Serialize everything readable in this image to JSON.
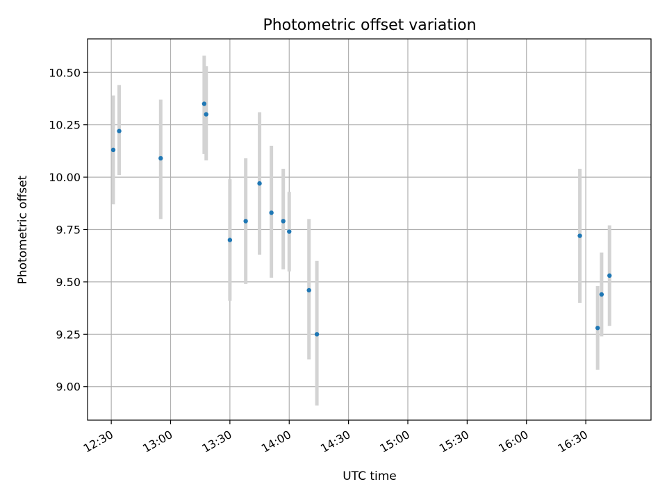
{
  "chart_data": {
    "type": "scatter",
    "title": "Photometric offset variation",
    "xlabel": "UTC time",
    "ylabel": "Photometric offset",
    "x_ticks": [
      "12:30",
      "13:00",
      "13:30",
      "14:00",
      "14:30",
      "15:00",
      "15:30",
      "16:00",
      "16:30"
    ],
    "y_ticks": [
      "9.00",
      "9.25",
      "9.50",
      "9.75",
      "10.00",
      "10.25",
      "10.50"
    ],
    "xlim": [
      "12:18",
      "17:03"
    ],
    "ylim": [
      8.84,
      10.66
    ],
    "grid": true,
    "colors": {
      "point": "#1f77b4",
      "errorbar": "#d3d3d3",
      "grid": "#b0b0b0"
    },
    "points": [
      {
        "x": "12:31",
        "y": 10.13,
        "err_low": 9.87,
        "err_high": 10.39
      },
      {
        "x": "12:34",
        "y": 10.22,
        "err_low": 10.01,
        "err_high": 10.44
      },
      {
        "x": "12:55",
        "y": 10.09,
        "err_low": 9.8,
        "err_high": 10.37
      },
      {
        "x": "13:17",
        "y": 10.35,
        "err_low": 10.11,
        "err_high": 10.58
      },
      {
        "x": "13:18",
        "y": 10.3,
        "err_low": 10.08,
        "err_high": 10.53
      },
      {
        "x": "13:30",
        "y": 9.7,
        "err_low": 9.41,
        "err_high": 9.99
      },
      {
        "x": "13:38",
        "y": 9.79,
        "err_low": 9.49,
        "err_high": 10.09
      },
      {
        "x": "13:45",
        "y": 9.97,
        "err_low": 9.63,
        "err_high": 10.31
      },
      {
        "x": "13:51",
        "y": 9.83,
        "err_low": 9.52,
        "err_high": 10.15
      },
      {
        "x": "13:57",
        "y": 9.79,
        "err_low": 9.56,
        "err_high": 10.04
      },
      {
        "x": "14:00",
        "y": 9.74,
        "err_low": 9.55,
        "err_high": 9.93
      },
      {
        "x": "14:10",
        "y": 9.46,
        "err_low": 9.13,
        "err_high": 9.8
      },
      {
        "x": "14:14",
        "y": 9.25,
        "err_low": 8.91,
        "err_high": 9.6
      },
      {
        "x": "16:27",
        "y": 9.72,
        "err_low": 9.4,
        "err_high": 10.04
      },
      {
        "x": "16:36",
        "y": 9.28,
        "err_low": 9.08,
        "err_high": 9.48
      },
      {
        "x": "16:38",
        "y": 9.44,
        "err_low": 9.24,
        "err_high": 9.64
      },
      {
        "x": "16:42",
        "y": 9.53,
        "err_low": 9.29,
        "err_high": 9.77
      }
    ]
  }
}
